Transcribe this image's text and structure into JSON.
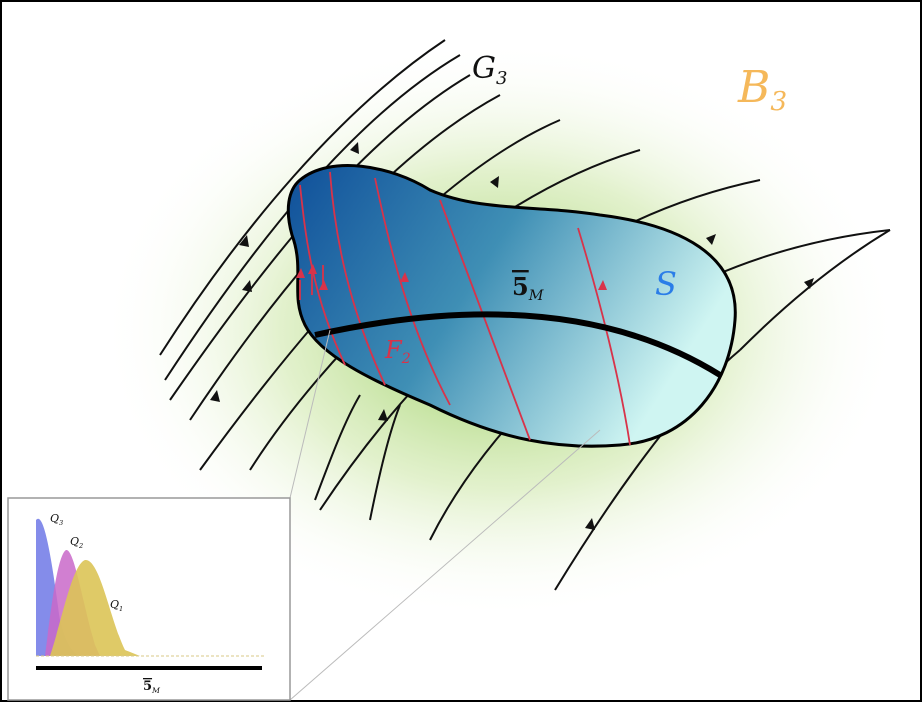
{
  "labels": {
    "g3": {
      "main": "G",
      "sub": "3"
    },
    "b3": {
      "main": "B",
      "sub": "3"
    },
    "s": {
      "main": "S"
    },
    "five_m": {
      "main": "5",
      "sub": "M"
    },
    "f2": {
      "main": "F",
      "sub": "2"
    }
  },
  "inset": {
    "q3": {
      "main": "Q",
      "sub": "3"
    },
    "q2": {
      "main": "Q",
      "sub": "2"
    },
    "q1": {
      "main": "Q",
      "sub": "1"
    },
    "axis": {
      "main": "5",
      "sub": "M"
    }
  }
}
